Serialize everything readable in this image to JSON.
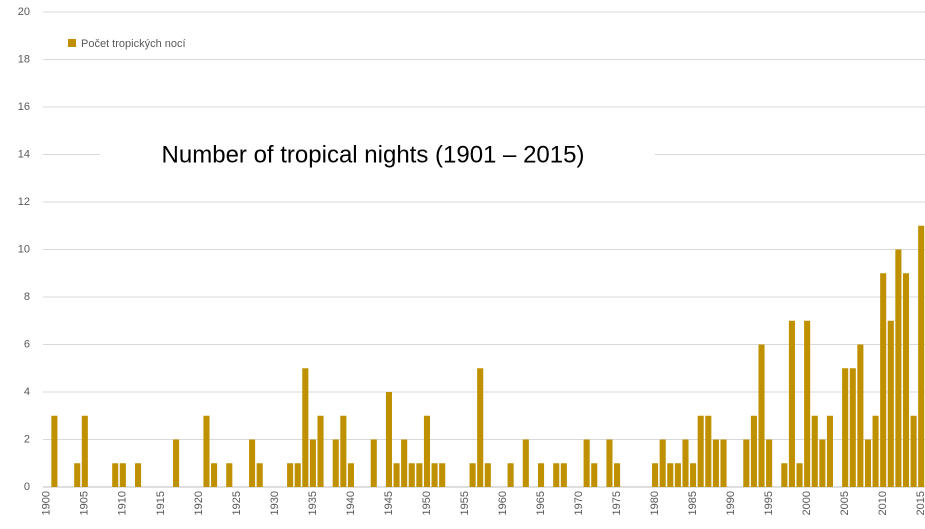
{
  "chart_data": {
    "type": "bar",
    "title": "Number of tropical nights (1901 – 2015)",
    "categories": [
      1900,
      null,
      null,
      null,
      null,
      1905,
      null,
      null,
      null,
      null,
      1910,
      null,
      null,
      null,
      null,
      1915,
      null,
      null,
      null,
      null,
      1920,
      null,
      null,
      null,
      null,
      1925,
      null,
      null,
      null,
      null,
      1930,
      null,
      null,
      null,
      null,
      1935,
      null,
      null,
      null,
      null,
      1940,
      null,
      null,
      null,
      null,
      1945,
      null,
      null,
      null,
      null,
      1950,
      null,
      null,
      null,
      null,
      1955,
      null,
      null,
      null,
      null,
      1960,
      null,
      null,
      null,
      null,
      1965,
      null,
      null,
      null,
      null,
      1970,
      null,
      null,
      null,
      null,
      1975,
      null,
      null,
      null,
      null,
      1980,
      null,
      null,
      null,
      null,
      1985,
      null,
      null,
      null,
      null,
      1990,
      null,
      null,
      null,
      null,
      1995,
      null,
      null,
      null,
      null,
      2000,
      null,
      null,
      null,
      null,
      2005,
      null,
      null,
      null,
      null,
      2010,
      null,
      null,
      null,
      null,
      2015
    ],
    "series": [
      {
        "name": "Počet tropických nocí",
        "color": "#bf9000",
        "values": [
          0,
          3,
          0,
          0,
          1,
          3,
          0,
          0,
          0,
          1,
          1,
          0,
          1,
          0,
          0,
          0,
          0,
          2,
          0,
          0,
          0,
          3,
          1,
          0,
          1,
          0,
          0,
          2,
          1,
          0,
          0,
          0,
          1,
          1,
          5,
          2,
          3,
          0,
          2,
          3,
          1,
          0,
          0,
          2,
          0,
          4,
          1,
          2,
          1,
          1,
          3,
          1,
          1,
          0,
          0,
          0,
          1,
          5,
          1,
          0,
          0,
          1,
          0,
          2,
          0,
          1,
          0,
          1,
          1,
          0,
          0,
          2,
          1,
          0,
          2,
          1,
          0,
          0,
          0,
          0,
          1,
          2,
          1,
          1,
          2,
          1,
          3,
          3,
          2,
          2,
          0,
          0,
          2,
          3,
          6,
          2,
          0,
          1,
          7,
          1,
          7,
          3,
          2,
          3,
          0,
          5,
          5,
          6,
          2,
          3,
          9,
          7,
          10,
          9,
          3,
          11
        ]
      }
    ],
    "ylim": [
      0,
      20
    ],
    "yticks": [
      0,
      2,
      4,
      6,
      8,
      10,
      12,
      14,
      16,
      18,
      20
    ],
    "grid": true,
    "legend": "top-left"
  }
}
